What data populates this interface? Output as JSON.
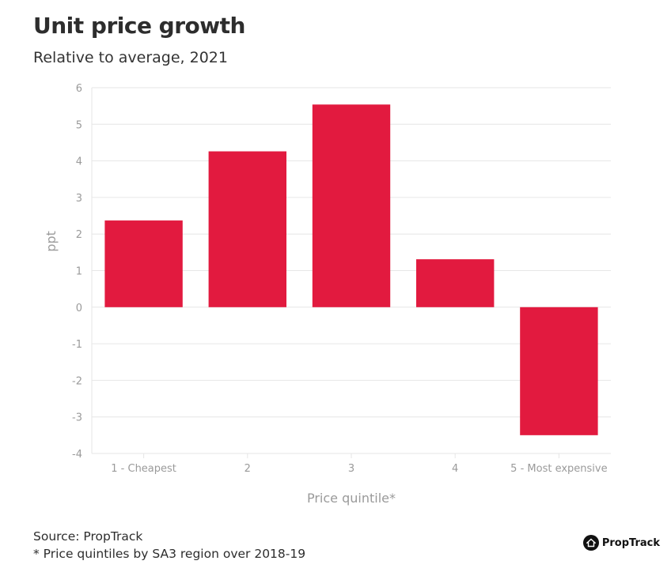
{
  "header": {
    "title": "Unit price growth",
    "subtitle": "Relative to average, 2021"
  },
  "footer": {
    "source": "Source: PropTrack",
    "note": "* Price quintiles by SA3 region over 2018-19"
  },
  "brand": {
    "name": "PropTrack",
    "logo_icon": "house-icon"
  },
  "colors": {
    "bar": "#e21a3f",
    "grid": "#e6e6e6",
    "axis_text": "#9a9a9a"
  },
  "chart_data": {
    "type": "bar",
    "categories": [
      "1 - Cheapest",
      "2",
      "3",
      "4",
      "5 - Most expensive"
    ],
    "values": [
      2.37,
      4.26,
      5.54,
      1.31,
      -3.5
    ],
    "xlabel": "Price quintile*",
    "ylabel": "ppt",
    "ylim": [
      -4,
      6
    ],
    "yticks": [
      6,
      5,
      4,
      3,
      2,
      1,
      0,
      -1,
      -2,
      -3,
      -4
    ],
    "grid": true,
    "legend": "none"
  }
}
